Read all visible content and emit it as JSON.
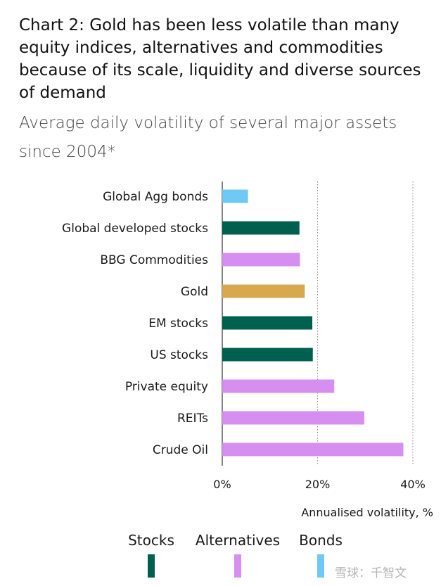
{
  "header": {
    "title": "Chart 2: Gold has been less volatile than many equity indices, alternatives and commodities because of its scale, liquidity and diverse sources of demand",
    "subtitle": "Average daily volatility of several major assets since 2004*"
  },
  "chart_data": {
    "type": "bar",
    "orientation": "horizontal",
    "categories": [
      "Global Agg bonds",
      "Global developed stocks",
      "BBG Commodities",
      "Gold",
      "EM stocks",
      "US stocks",
      "Private equity",
      "REITs",
      "Crude Oil"
    ],
    "values": [
      5.4,
      16.2,
      16.3,
      17.3,
      18.9,
      19.0,
      23.5,
      29.8,
      38.0
    ],
    "groups": [
      "Bonds",
      "Stocks",
      "Alternatives",
      "Gold",
      "Stocks",
      "Stocks",
      "Alternatives",
      "Alternatives",
      "Alternatives"
    ],
    "xlim": [
      0,
      40
    ],
    "xticks": [
      0,
      20,
      40
    ],
    "xtick_labels": [
      "0%",
      "20%",
      "40%"
    ],
    "xlabel": "Annualised volatility, %",
    "grid": "vertical dotted",
    "legend": {
      "placement": "bottom",
      "items": [
        {
          "label": "Stocks",
          "color": "#00604f"
        },
        {
          "label": "Alternatives",
          "color": "#d68ff0"
        },
        {
          "label": "Bonds",
          "color": "#70c8f5"
        }
      ]
    },
    "colors": {
      "Stocks": "#00604f",
      "Alternatives": "#d68ff0",
      "Bonds": "#70c8f5",
      "Gold": "#d8a84c"
    }
  },
  "watermark": {
    "text": "雪球：千智文"
  }
}
